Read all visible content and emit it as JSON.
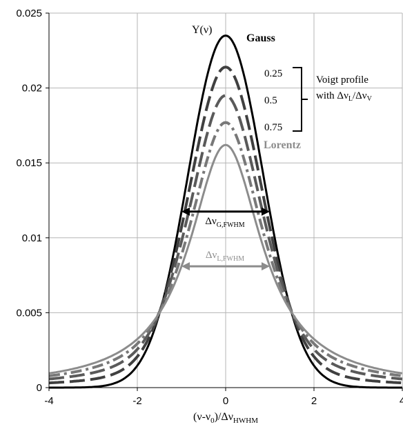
{
  "chart_data": {
    "type": "line",
    "xlabel": "(ν-ν₀)/Δν_HWHM",
    "xlabel_main": "(ν-ν",
    "xlabel_sub0": "0",
    "xlabel_mid": ")/Δν",
    "xlabel_sub1": "HWHM",
    "ylabel": "Y(ν)",
    "xlim": [
      -4,
      4
    ],
    "ylim": [
      0,
      0.025
    ],
    "x_ticks": [
      "-4",
      "-2",
      "0",
      "2",
      "4"
    ],
    "y_ticks": [
      "0",
      "0.005",
      "0.01",
      "0.015",
      "0.02",
      "0.025"
    ],
    "grid": true,
    "series": [
      {
        "name": "Gauss",
        "color": "#000000",
        "dash": "solid",
        "peak": 0.0235,
        "x": [
          -4,
          -3,
          -2,
          -1.5,
          -1,
          -0.5,
          0,
          0.5,
          1,
          1.5,
          2,
          3,
          4
        ],
        "y": [
          1e-05,
          0.0002,
          0.0015,
          0.005,
          0.0117,
          0.0198,
          0.0235,
          0.0198,
          0.0117,
          0.005,
          0.0015,
          0.0002,
          1e-05
        ]
      },
      {
        "name": "0.25",
        "color": "#404040",
        "dash": "long-dash",
        "peak": 0.0214,
        "x": [
          -4,
          -3,
          -2,
          -1.5,
          -1,
          -0.5,
          0,
          0.5,
          1,
          1.5,
          2,
          3,
          4
        ],
        "y": [
          0.0004,
          0.0008,
          0.0021,
          0.005,
          0.0107,
          0.0181,
          0.0214,
          0.0181,
          0.0107,
          0.005,
          0.0021,
          0.0008,
          0.0004
        ]
      },
      {
        "name": "0.5",
        "color": "#5a5a5a",
        "dash": "long-dash",
        "peak": 0.0195,
        "x": [
          -4,
          -3,
          -2,
          -1.5,
          -1,
          -0.5,
          0,
          0.5,
          1,
          1.5,
          2,
          3,
          4
        ],
        "y": [
          0.0006,
          0.0012,
          0.0026,
          0.005,
          0.0098,
          0.0165,
          0.0195,
          0.0165,
          0.0098,
          0.005,
          0.0026,
          0.0012,
          0.0006
        ]
      },
      {
        "name": "0.75",
        "color": "#787878",
        "dash": "dash-dot",
        "peak": 0.0177,
        "x": [
          -4,
          -3,
          -2,
          -1.5,
          -1,
          -0.5,
          0,
          0.5,
          1,
          1.5,
          2,
          3,
          4
        ],
        "y": [
          0.0008,
          0.0015,
          0.003,
          0.005,
          0.0089,
          0.0149,
          0.0177,
          0.0149,
          0.0089,
          0.005,
          0.003,
          0.0015,
          0.0008
        ]
      },
      {
        "name": "Lorentz",
        "color": "#8c8c8c",
        "dash": "solid",
        "peak": 0.0162,
        "x": [
          -4,
          -3,
          -2,
          -1.5,
          -1,
          -0.5,
          0,
          0.5,
          1,
          1.5,
          2,
          3,
          4
        ],
        "y": [
          0.001,
          0.0017,
          0.0033,
          0.005,
          0.0081,
          0.013,
          0.0162,
          0.013,
          0.0081,
          0.005,
          0.0033,
          0.0017,
          0.001
        ]
      }
    ],
    "annotations": {
      "gauss": "Gauss",
      "lorentz": "Lorentz",
      "voigt_values": [
        "0.25",
        "0.5",
        "0.75"
      ],
      "voigt_line1": "Voigt profile",
      "voigt_line2_pre": "with Δν",
      "voigt_line2_sub1": "L",
      "voigt_line2_mid": "/Δν",
      "voigt_line2_sub2": "V",
      "gauss_fwhm_main": "Δν",
      "gauss_fwhm_sub": "G,FWHM",
      "lorentz_fwhm_main": "Δν",
      "lorentz_fwhm_sub": "L,FWHM",
      "gauss_fwhm_half_width": 1.0,
      "lorentz_fwhm_half_width": 1.0,
      "gauss_fwhm_y": 0.01175,
      "lorentz_fwhm_y": 0.0081
    },
    "colors": {
      "grid": "#b5b5b5",
      "axis": "#000000",
      "gauss_arrow": "#000000",
      "lorentz_arrow": "#8c8c8c"
    }
  }
}
